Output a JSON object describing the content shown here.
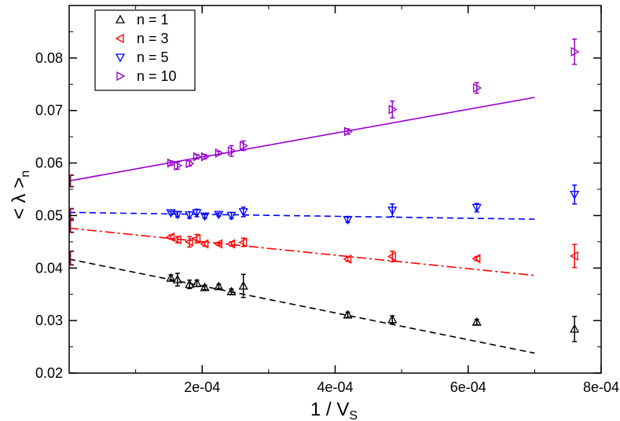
{
  "chart_data": {
    "type": "scatter",
    "title": "",
    "xlabel": "1 / V",
    "xlabel_sub": "S",
    "ylabel": "< λ >",
    "ylabel_sub": "n",
    "xlim": [
      0,
      0.0008
    ],
    "ylim": [
      0.02,
      0.09
    ],
    "x_ticks": [
      0.0002,
      0.0004,
      0.0006,
      0.0008
    ],
    "x_tick_labels": [
      "2e-04",
      "4e-04",
      "6e-04",
      "8e-04"
    ],
    "y_ticks": [
      0.02,
      0.03,
      0.04,
      0.05,
      0.06,
      0.07,
      0.08
    ],
    "y_tick_labels": [
      "0.02",
      "0.03",
      "0.04",
      "0.05",
      "0.06",
      "0.07",
      "0.08"
    ],
    "grid": false,
    "legend_position": "top-left",
    "series": [
      {
        "name": "n = 1",
        "color": "#000000",
        "marker": "triangle-up",
        "x": [
          0.000153,
          0.000163,
          0.000181,
          0.000192,
          0.000204,
          0.000225,
          0.000244,
          0.000262,
          0.000419,
          0.000486,
          0.000613,
          0.00076
        ],
        "y": [
          0.0381,
          0.0378,
          0.0369,
          0.0371,
          0.0363,
          0.0365,
          0.0355,
          0.0366,
          0.0311,
          0.0302,
          0.0297,
          0.0284
        ],
        "err": [
          0.0006,
          0.0012,
          0.0008,
          0.0006,
          0.0004,
          0.0004,
          0.0005,
          0.0022,
          0.0005,
          0.0007,
          0.0005,
          0.0024
        ],
        "fit": {
          "x": [
            0,
            0.0007
          ],
          "y": [
            0.0417,
            0.0238
          ],
          "style": "dashed"
        }
      },
      {
        "name": "n = 3",
        "color": "#ff0000",
        "marker": "triangle-left",
        "x": [
          0.000153,
          0.000163,
          0.000181,
          0.000192,
          0.000204,
          0.000225,
          0.000244,
          0.000262,
          0.000419,
          0.000486,
          0.000613,
          0.00076
        ],
        "y": [
          0.0459,
          0.0454,
          0.045,
          0.0456,
          0.0446,
          0.0446,
          0.0446,
          0.0449,
          0.0417,
          0.0422,
          0.0418,
          0.0423
        ],
        "err": [
          0.0004,
          0.0006,
          0.001,
          0.0008,
          0.0004,
          0.0003,
          0.0004,
          0.0008,
          0.0004,
          0.001,
          0.0004,
          0.0022
        ],
        "fit": {
          "x": [
            0,
            0.0007
          ],
          "y": [
            0.0476,
            0.0386
          ],
          "style": "dashdot"
        }
      },
      {
        "name": "n = 5",
        "color": "#0000ff",
        "marker": "triangle-down",
        "x": [
          0.000153,
          0.000163,
          0.000181,
          0.000192,
          0.000204,
          0.000225,
          0.000244,
          0.000262,
          0.000419,
          0.000486,
          0.000613,
          0.00076
        ],
        "y": [
          0.0505,
          0.0502,
          0.0501,
          0.0505,
          0.0499,
          0.0502,
          0.05,
          0.0507,
          0.0492,
          0.051,
          0.0515,
          0.054
        ],
        "err": [
          0.0003,
          0.0005,
          0.0006,
          0.0007,
          0.0004,
          0.0003,
          0.0006,
          0.0009,
          0.0005,
          0.0012,
          0.0008,
          0.0018
        ],
        "fit": {
          "x": [
            0,
            0.0007
          ],
          "y": [
            0.0506,
            0.0493
          ],
          "style": "dashed"
        }
      },
      {
        "name": "n = 10",
        "color": "#9900cc",
        "marker": "triangle-right",
        "x": [
          0.000153,
          0.000163,
          0.000181,
          0.000192,
          0.000204,
          0.000225,
          0.000244,
          0.000262,
          0.000419,
          0.000486,
          0.000613,
          0.00076
        ],
        "y": [
          0.06,
          0.0595,
          0.0599,
          0.0612,
          0.0612,
          0.0619,
          0.0623,
          0.0633,
          0.066,
          0.0702,
          0.0743,
          0.0812
        ],
        "err": [
          0.0004,
          0.0007,
          0.0005,
          0.0004,
          0.0004,
          0.0003,
          0.001,
          0.0009,
          0.0005,
          0.0016,
          0.001,
          0.0024
        ],
        "fit": {
          "x": [
            0,
            0.0007
          ],
          "y": [
            0.0566,
            0.0725
          ],
          "style": "solid"
        }
      }
    ],
    "extrapolated": {
      "color": "#7a1a40",
      "points": [
        {
          "series": "n = 1",
          "y": 0.0419,
          "err": 0.0013
        },
        {
          "series": "n = 3",
          "y": 0.0481,
          "err": 0.0013
        },
        {
          "series": "n = 5",
          "y": 0.0502,
          "err": 0.0011
        },
        {
          "series": "n = 10",
          "y": 0.0566,
          "err": 0.0011
        }
      ]
    }
  }
}
